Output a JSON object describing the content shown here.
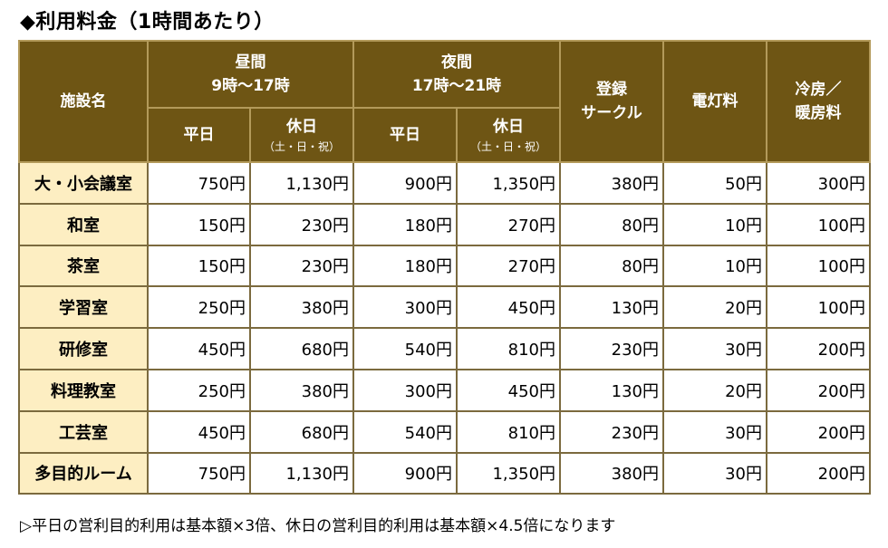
{
  "title": "◆利用料金（1時間あたり）",
  "headers": {
    "facility": "施設名",
    "daytime": "昼間",
    "daytime_hours": "9時～17時",
    "night": "夜間",
    "night_hours": "17時～21時",
    "weekday": "平日",
    "holiday": "休日",
    "holiday_note": "（土・日・祝）",
    "circle_line1": "登録",
    "circle_line2": "サークル",
    "electric": "電灯料",
    "aircon_line1": "冷房／",
    "aircon_line2": "暖房料"
  },
  "rows": [
    {
      "name": "大・小会議室",
      "values": [
        "750円",
        "1,130円",
        "900円",
        "1,350円",
        "380円",
        "50円",
        "300円"
      ]
    },
    {
      "name": "和室",
      "values": [
        "150円",
        "230円",
        "180円",
        "270円",
        "80円",
        "10円",
        "100円"
      ]
    },
    {
      "name": "茶室",
      "values": [
        "150円",
        "230円",
        "180円",
        "270円",
        "80円",
        "10円",
        "100円"
      ]
    },
    {
      "name": "学習室",
      "values": [
        "250円",
        "380円",
        "300円",
        "450円",
        "130円",
        "20円",
        "100円"
      ]
    },
    {
      "name": "研修室",
      "values": [
        "450円",
        "680円",
        "540円",
        "810円",
        "230円",
        "30円",
        "200円"
      ]
    },
    {
      "name": "料理教室",
      "values": [
        "250円",
        "380円",
        "300円",
        "450円",
        "130円",
        "20円",
        "200円"
      ]
    },
    {
      "name": "工芸室",
      "values": [
        "450円",
        "680円",
        "540円",
        "810円",
        "230円",
        "30円",
        "200円"
      ]
    },
    {
      "name": "多目的ルーム",
      "values": [
        "750円",
        "1,130円",
        "900円",
        "1,350円",
        "380円",
        "30円",
        "200円"
      ]
    }
  ],
  "note": "▷平日の営利目的利用は基本額×3倍、休日の営利目的利用は基本額×4.5倍になります",
  "colors": {
    "header_bg": "#6e5514",
    "row_header_bg": "#fdeec2",
    "border": "#7b6a3e"
  }
}
